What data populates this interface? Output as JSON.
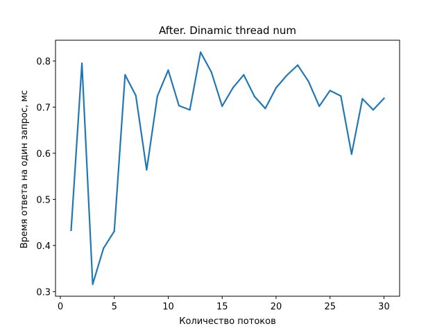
{
  "chart_data": {
    "type": "line",
    "title": "After. Dinamic thread num",
    "xlabel": "Количество потоков",
    "ylabel": "Время ответа на один запрос, мс",
    "xlim": [
      -0.45,
      31.45
    ],
    "ylim": [
      0.29,
      0.845
    ],
    "xticks": [
      0,
      5,
      10,
      15,
      20,
      25,
      30
    ],
    "yticks": [
      0.3,
      0.4,
      0.5,
      0.6,
      0.7,
      0.8
    ],
    "grid": false,
    "line_color": "#1f77b4",
    "series": [
      {
        "x": [
          1,
          2,
          3,
          4,
          5,
          6,
          7,
          8,
          9,
          10,
          11,
          12,
          13,
          14,
          15,
          16,
          17,
          18,
          19,
          20,
          21,
          22,
          23,
          24,
          25,
          26,
          27,
          28,
          29,
          30
        ],
        "values": [
          0.433,
          0.795,
          0.316,
          0.394,
          0.431,
          0.77,
          0.725,
          0.564,
          0.724,
          0.78,
          0.703,
          0.694,
          0.819,
          0.776,
          0.702,
          0.742,
          0.77,
          0.723,
          0.697,
          0.742,
          0.769,
          0.791,
          0.756,
          0.702,
          0.736,
          0.724,
          0.598,
          0.718,
          0.694,
          0.719
        ]
      }
    ]
  }
}
